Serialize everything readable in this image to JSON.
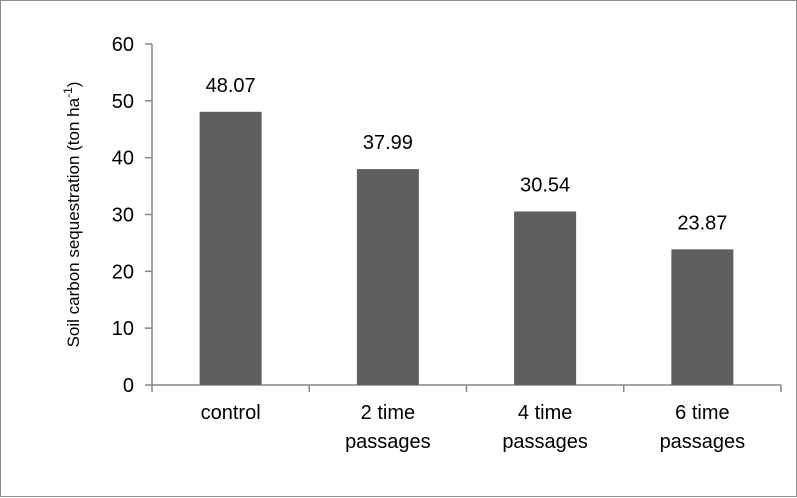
{
  "chart_data": {
    "type": "bar",
    "categories": [
      [
        "control"
      ],
      [
        "2 time",
        "passages"
      ],
      [
        "4 time",
        "passages"
      ],
      [
        "6 time",
        "passages"
      ]
    ],
    "values": [
      48.07,
      37.99,
      30.54,
      23.87
    ],
    "data_labels": [
      "48.07",
      "37.99",
      "30.54",
      "23.87"
    ],
    "ylabel": "Soil carbon sequestration (ton ha",
    "ylabel_unit_sup": "-1",
    "ylabel_close": ")",
    "xlabel": "",
    "title": "",
    "ylim": [
      0,
      60
    ],
    "yticks": [
      0,
      10,
      20,
      30,
      40,
      50,
      60
    ],
    "bar_color": "#5f5f5f",
    "axis_color": "#868686",
    "grid": false,
    "legend": "none"
  }
}
